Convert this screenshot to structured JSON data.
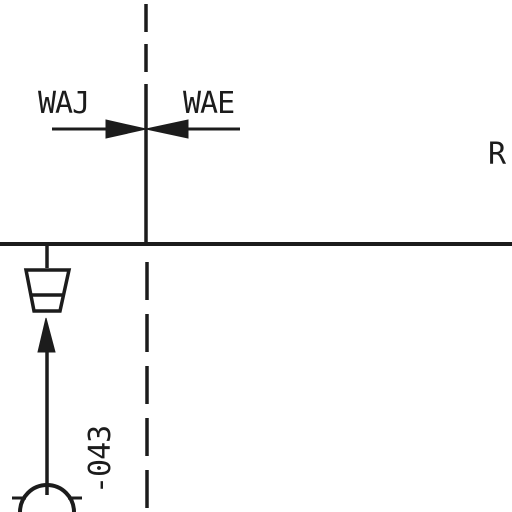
{
  "labels": {
    "left_tag": "WAJ",
    "right_tag": "WAE",
    "edge_tag": "R",
    "line_number": "-043"
  },
  "colors": {
    "ink": "#1c1c1c",
    "paper": "#ffffff"
  }
}
